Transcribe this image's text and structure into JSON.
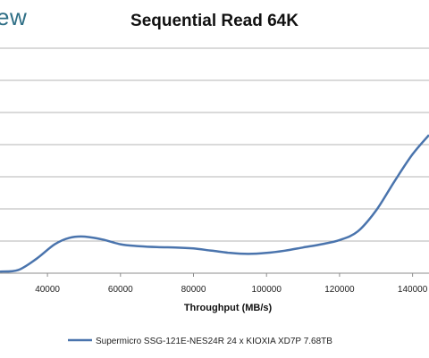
{
  "brand": {
    "partial_text": "ew"
  },
  "chart_data": {
    "type": "line",
    "title": "Sequential Read 64K",
    "xlabel": "Throughput (MB/s)",
    "ylabel": "",
    "x_ticks": [
      40000,
      60000,
      80000,
      100000,
      120000,
      140000
    ],
    "xlim": [
      27000,
      144500
    ],
    "grid": true,
    "legend_position": "bottom",
    "line_color": "#4a74ad",
    "series": [
      {
        "name": "Supermicro SSG-121E-NES24R 24 x KIOXIA XD7P 7.68TB",
        "points": [
          [
            27000,
            0.05
          ],
          [
            32000,
            0.1
          ],
          [
            37000,
            0.45
          ],
          [
            42000,
            0.9
          ],
          [
            46000,
            1.1
          ],
          [
            50000,
            1.14
          ],
          [
            55000,
            1.05
          ],
          [
            60000,
            0.9
          ],
          [
            65000,
            0.84
          ],
          [
            70000,
            0.81
          ],
          [
            75000,
            0.8
          ],
          [
            80000,
            0.77
          ],
          [
            85000,
            0.7
          ],
          [
            90000,
            0.63
          ],
          [
            95000,
            0.6
          ],
          [
            100000,
            0.63
          ],
          [
            105000,
            0.7
          ],
          [
            110000,
            0.8
          ],
          [
            115000,
            0.9
          ],
          [
            120000,
            1.03
          ],
          [
            125000,
            1.3
          ],
          [
            130000,
            1.95
          ],
          [
            135000,
            2.85
          ],
          [
            140000,
            3.7
          ],
          [
            144500,
            4.3
          ]
        ]
      }
    ]
  }
}
